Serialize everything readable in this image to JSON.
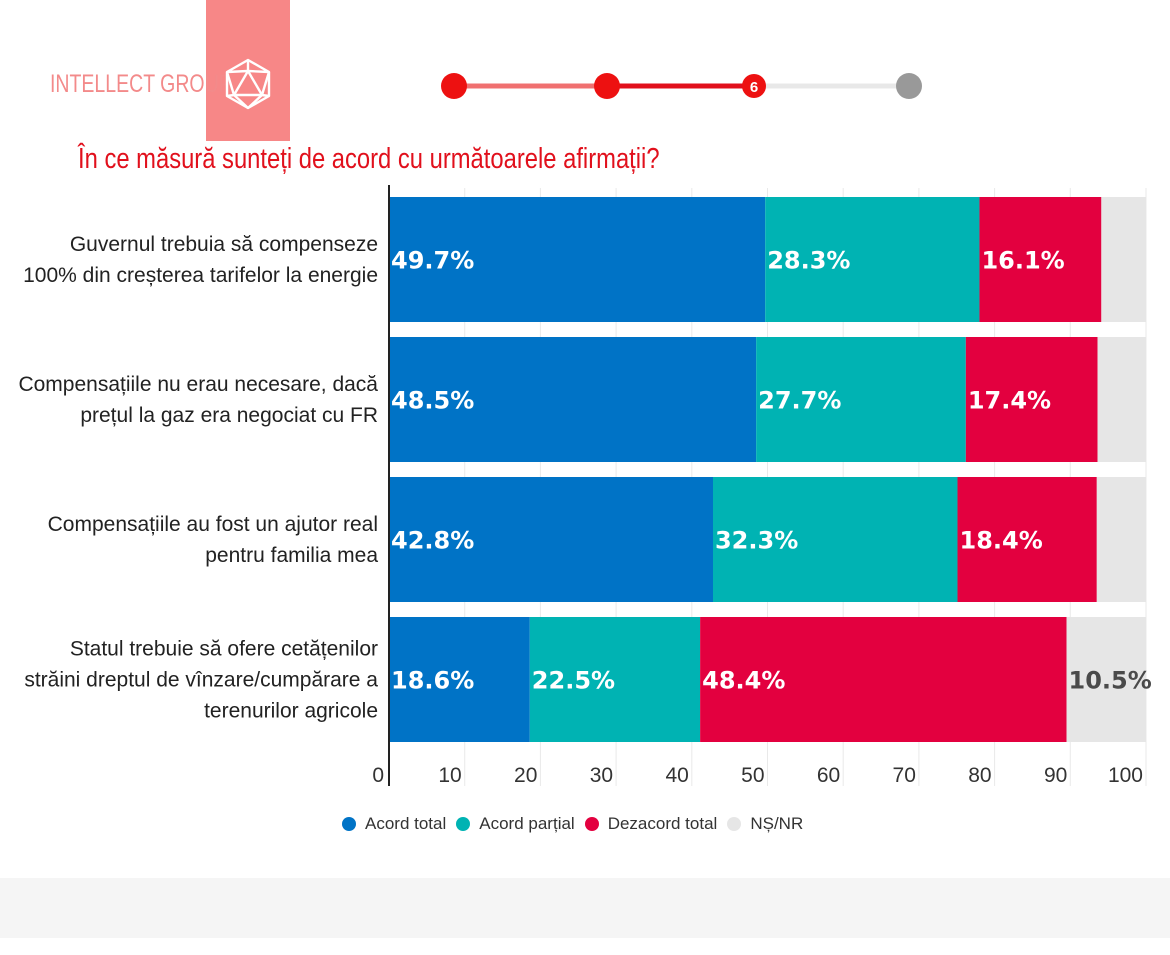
{
  "brand": {
    "name": "INTELLECT GROUP",
    "logo_icon": "icosahedron-icon"
  },
  "stepper": {
    "steps": [
      "",
      "",
      "6",
      ""
    ],
    "active_color": "#e1101c",
    "inactive_color": "#999999"
  },
  "title": "În ce măsură sunteți de acord cu următoarele afirmații?",
  "colors": {
    "acord_total": "#0073c6",
    "acord_partial": "#00b3b3",
    "dezacord_total": "#e3003f",
    "ns_nr": "#e6e6e6"
  },
  "chart_data": {
    "type": "bar",
    "orientation": "horizontal",
    "stacked": true,
    "categories": [
      [
        "Guvernul trebuia să compenseze",
        "100% din creșterea tarifelor la energie"
      ],
      [
        "Compensațiile nu erau necesare, dacă",
        "prețul la gaz era negociat cu FR"
      ],
      [
        "Compensațiile au fost un ajutor real",
        "pentru familia mea"
      ],
      [
        "Statul trebuie să ofere cetățenilor",
        "străini dreptul de vînzare/cumpărare a",
        "terenurilor agricole"
      ]
    ],
    "series": [
      {
        "name": "Acord total",
        "color": "#0073c6",
        "values": [
          49.7,
          48.5,
          42.8,
          18.6
        ],
        "labels": [
          "49.7%",
          "48.5%",
          "42.8%",
          "18.6%"
        ]
      },
      {
        "name": "Acord parțial",
        "color": "#00b3b3",
        "values": [
          28.3,
          27.7,
          32.3,
          22.5
        ],
        "labels": [
          "28.3%",
          "27.7%",
          "32.3%",
          "22.5%"
        ]
      },
      {
        "name": "Dezacord total",
        "color": "#e3003f",
        "values": [
          16.1,
          17.4,
          18.4,
          48.4
        ],
        "labels": [
          "16.1%",
          "17.4%",
          "18.4%",
          "48.4%"
        ]
      },
      {
        "name": "NȘ/NR",
        "color": "#e6e6e6",
        "values": [
          5.9,
          6.4,
          6.5,
          10.5
        ],
        "labels": [
          "",
          "",
          "",
          "10.5%"
        ]
      }
    ],
    "x_ticks": [
      "0",
      "10",
      "20",
      "30",
      "40",
      "50",
      "60",
      "70",
      "80",
      "90",
      "100"
    ],
    "xlim": [
      0,
      100
    ],
    "grid": true,
    "legend": "bottom"
  }
}
